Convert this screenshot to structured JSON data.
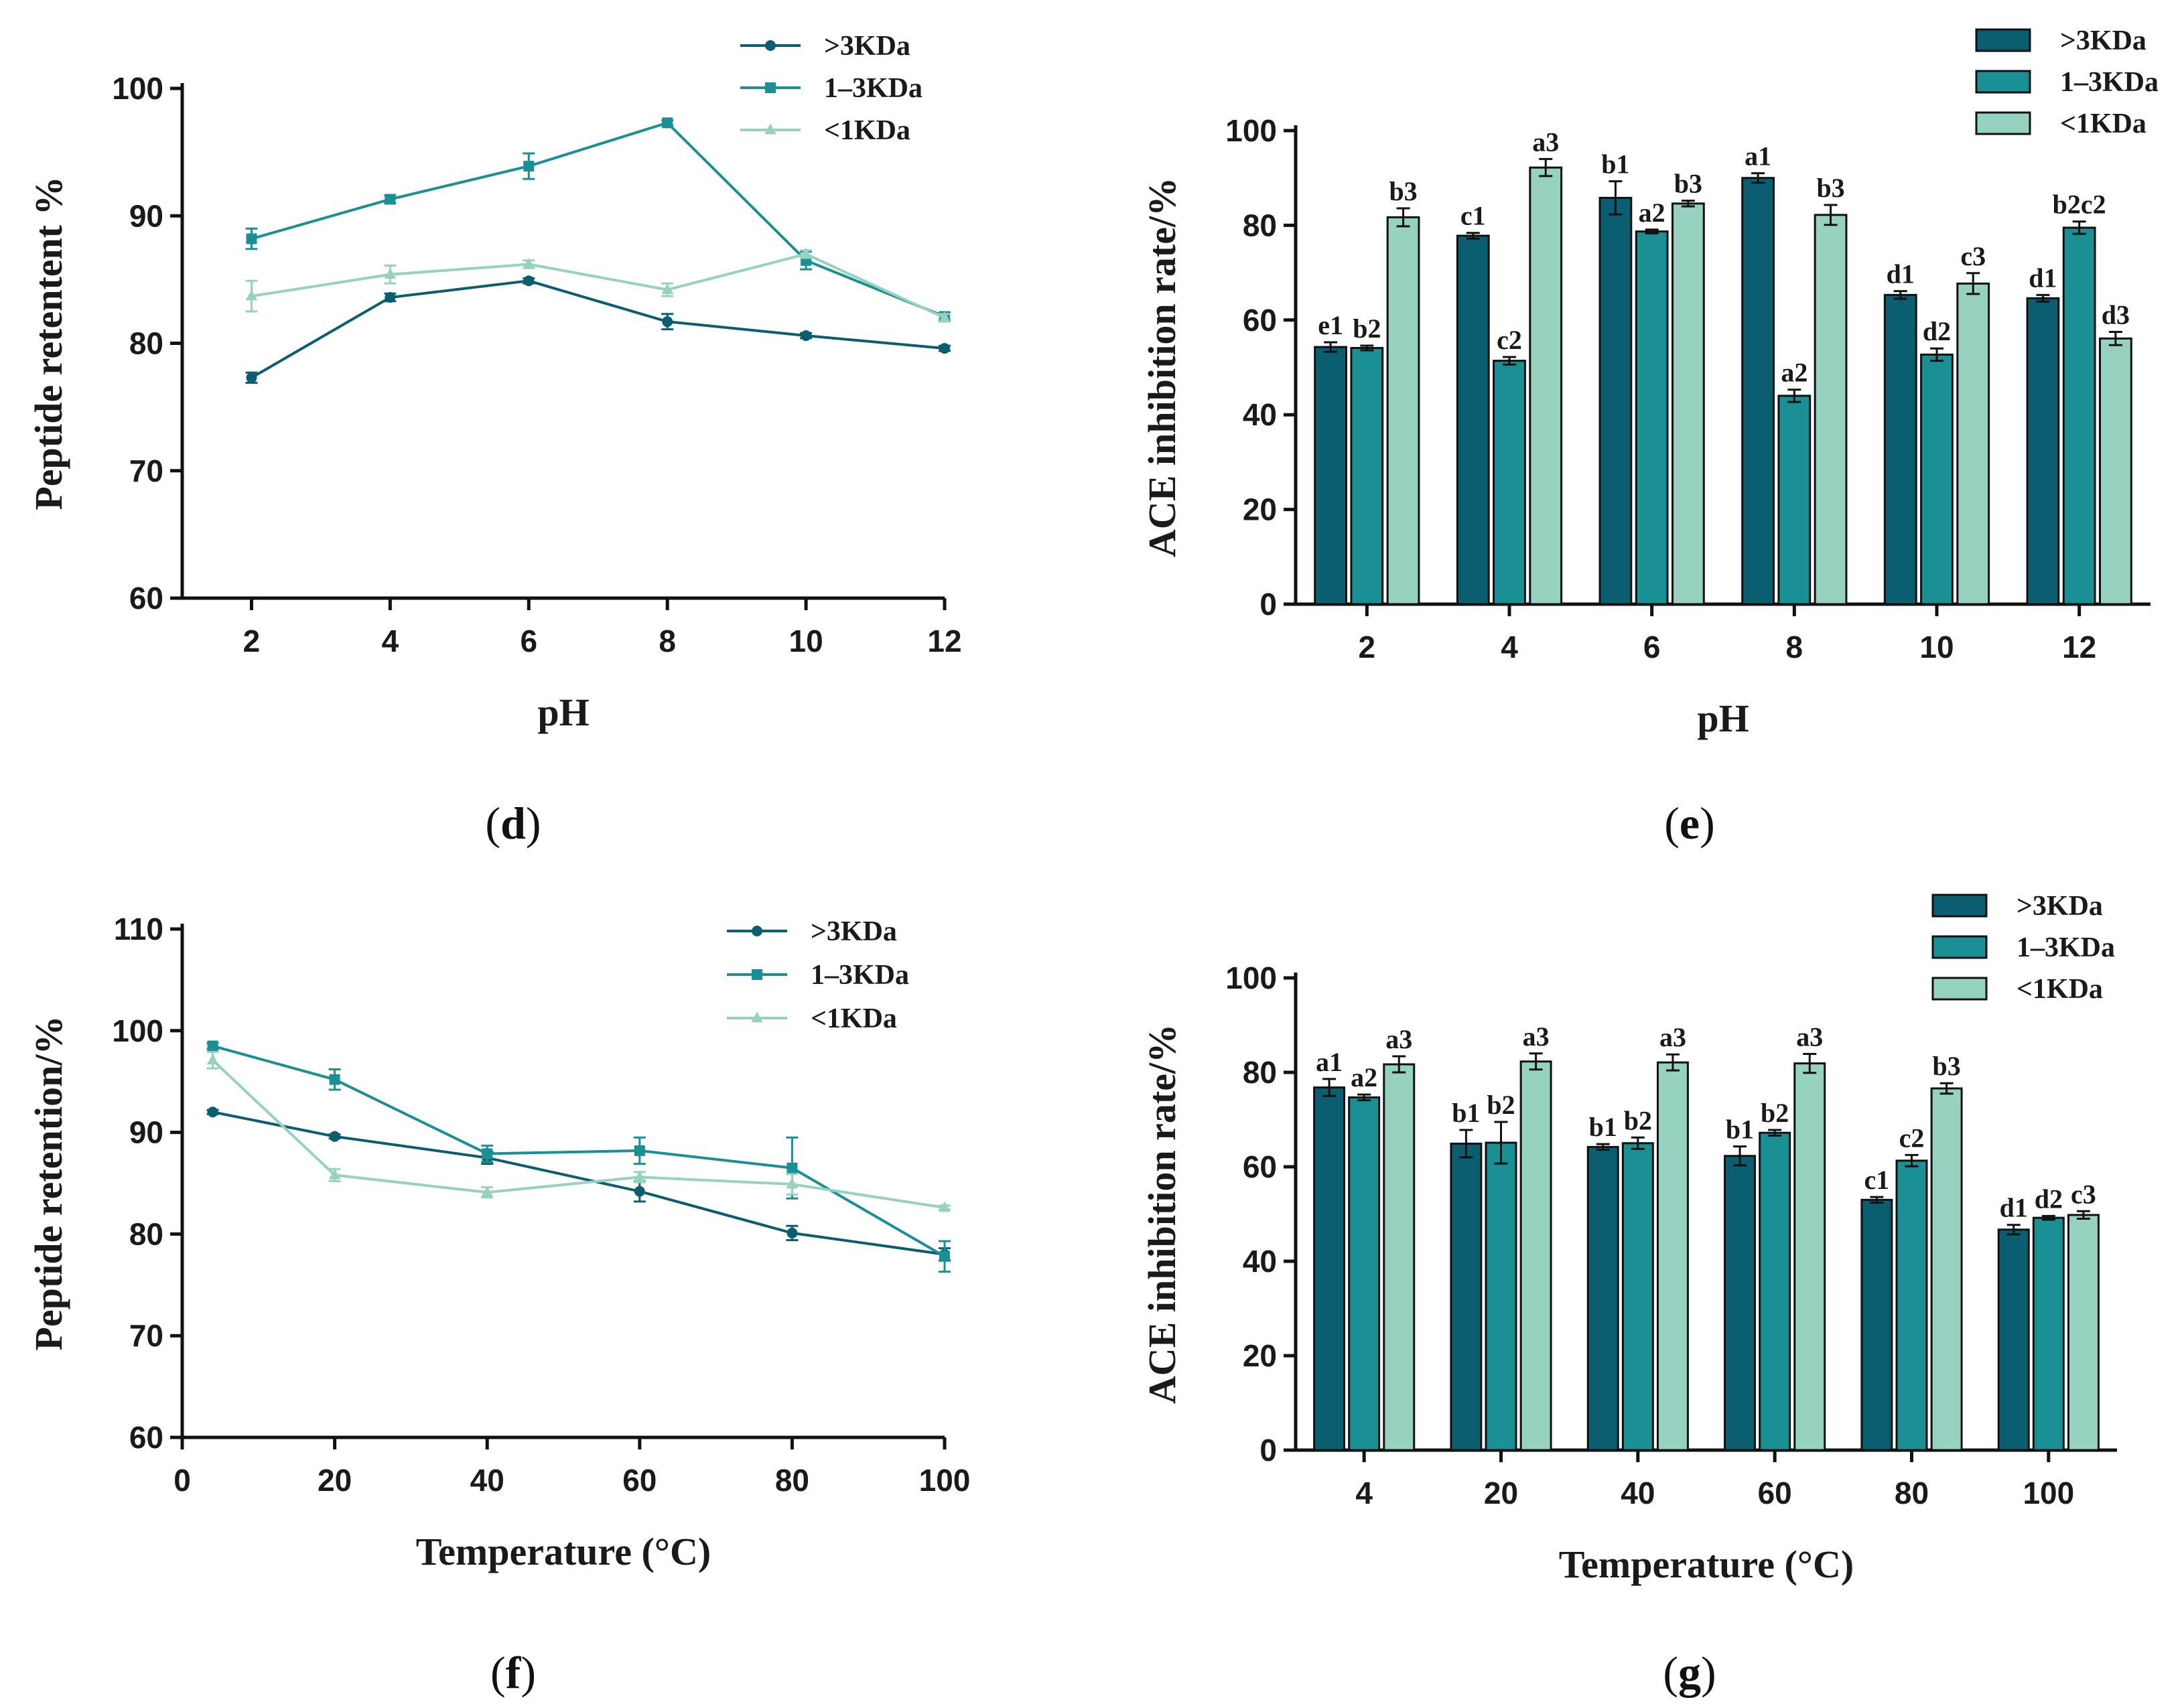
{
  "colors": {
    "dark": "#0b5e70",
    "mid": "#1a8f94",
    "light": "#96d2bf",
    "axis": "#111111"
  },
  "chart_data": [
    {
      "id": "d",
      "type": "line",
      "panel_label": "d",
      "ylabel": "Peptide retentent %",
      "xlabel": "pH",
      "x": [
        2,
        4,
        6,
        8,
        10,
        12
      ],
      "xlim": [
        1,
        12
      ],
      "ylim": [
        60,
        100
      ],
      "xticks": [
        2,
        4,
        6,
        8,
        10,
        12
      ],
      "yticks": [
        60,
        70,
        80,
        90,
        100
      ],
      "legend_position": "top-right",
      "series": [
        {
          "name": ">3KDa",
          "marker": "circle",
          "color_key": "dark",
          "values": [
            77.3,
            83.6,
            84.9,
            81.7,
            80.6,
            79.6
          ],
          "errors": [
            0.4,
            0.3,
            0.2,
            0.6,
            0.2,
            0.2
          ]
        },
        {
          "name": "1–3KDa",
          "marker": "square",
          "color_key": "mid",
          "values": [
            88.2,
            91.3,
            93.9,
            97.3,
            86.5,
            82.1
          ],
          "errors": [
            0.8,
            0.3,
            1.0,
            0.2,
            0.7,
            0.3
          ]
        },
        {
          "name": "<1KDa",
          "marker": "triangle",
          "color_key": "light",
          "values": [
            83.7,
            85.4,
            86.2,
            84.2,
            87.0,
            82.0
          ],
          "errors": [
            1.2,
            0.7,
            0.3,
            0.5,
            0.3,
            0.3
          ]
        }
      ]
    },
    {
      "id": "e",
      "type": "bar",
      "panel_label": "e",
      "ylabel": "ACE inhibition rate/%",
      "xlabel": "pH",
      "categories": [
        "2",
        "4",
        "6",
        "8",
        "10",
        "12"
      ],
      "ylim": [
        0,
        100
      ],
      "yticks": [
        0,
        20,
        40,
        60,
        80,
        100
      ],
      "legend_position": "top-right",
      "series": [
        {
          "name": ">3KDa",
          "color_key": "dark",
          "values": [
            54.3,
            77.8,
            85.8,
            90.0,
            65.3,
            64.6
          ],
          "errors": [
            1.0,
            0.6,
            3.5,
            1.0,
            0.8,
            0.7
          ],
          "labels": [
            "e1",
            "c1",
            "b1",
            "a1",
            "d1",
            "d1"
          ]
        },
        {
          "name": "1–3KDa",
          "color_key": "mid",
          "values": [
            54.1,
            51.4,
            78.7,
            44.0,
            52.7,
            79.5
          ],
          "errors": [
            0.5,
            0.8,
            0.4,
            1.3,
            1.3,
            1.3
          ],
          "labels": [
            "b2",
            "c2",
            "a2",
            "a2",
            "d2",
            "b2c2"
          ]
        },
        {
          "name": "<1KDa",
          "color_key": "light",
          "values": [
            81.7,
            92.2,
            84.6,
            82.2,
            67.7,
            56.1
          ],
          "errors": [
            1.9,
            1.8,
            0.6,
            2.1,
            2.2,
            1.4
          ],
          "labels": [
            "b3",
            "a3",
            "b3",
            "b3",
            "c3",
            "d3"
          ]
        }
      ]
    },
    {
      "id": "f",
      "type": "line",
      "panel_label": "f",
      "ylabel": "Peptide retention/%",
      "xlabel": "Temperature (°C)",
      "x": [
        4,
        20,
        40,
        60,
        80,
        100
      ],
      "xlim": [
        0,
        100
      ],
      "ylim": [
        60,
        110
      ],
      "xticks": [
        0,
        20,
        40,
        60,
        80,
        100
      ],
      "yticks": [
        60,
        70,
        80,
        90,
        100,
        110
      ],
      "legend_position": "top-right",
      "series": [
        {
          "name": ">3KDa",
          "marker": "circle",
          "color_key": "dark",
          "values": [
            92.0,
            89.6,
            87.5,
            84.2,
            80.1,
            78.0
          ],
          "errors": [
            0.2,
            0.2,
            0.6,
            1.0,
            0.7,
            0.6
          ]
        },
        {
          "name": "1–3KDa",
          "marker": "square",
          "color_key": "mid",
          "values": [
            98.5,
            95.2,
            87.9,
            88.2,
            86.5,
            77.8
          ],
          "errors": [
            0.3,
            1.0,
            0.8,
            1.3,
            3.0,
            1.5
          ]
        },
        {
          "name": "<1KDa",
          "marker": "triangle",
          "color_key": "light",
          "values": [
            97.1,
            85.8,
            84.1,
            85.6,
            84.9,
            82.6
          ],
          "errors": [
            0.8,
            0.6,
            0.5,
            0.5,
            1.0,
            0.2
          ]
        }
      ]
    },
    {
      "id": "g",
      "type": "bar",
      "panel_label": "g",
      "ylabel": "ACE inhibition rate/%",
      "xlabel": "Temperature (°C)",
      "categories": [
        "4",
        "20",
        "40",
        "60",
        "80",
        "100"
      ],
      "ylim": [
        0,
        100
      ],
      "yticks": [
        0,
        20,
        40,
        60,
        80,
        100
      ],
      "legend_position": "top-right",
      "series": [
        {
          "name": ">3KDa",
          "color_key": "dark",
          "values": [
            76.8,
            64.9,
            64.2,
            62.3,
            53.0,
            46.7
          ],
          "errors": [
            1.8,
            2.9,
            0.6,
            2.0,
            0.6,
            1.0
          ],
          "labels": [
            "a1",
            "b1",
            "b1",
            "b1",
            "c1",
            "d1"
          ]
        },
        {
          "name": "1–3KDa",
          "color_key": "mid",
          "values": [
            74.7,
            65.1,
            65.0,
            67.2,
            61.3,
            49.2
          ],
          "errors": [
            0.6,
            4.4,
            1.2,
            0.6,
            1.2,
            0.4
          ],
          "labels": [
            "a2",
            "b2",
            "b2",
            "b2",
            "c2",
            "d2"
          ]
        },
        {
          "name": "<1KDa",
          "color_key": "light",
          "values": [
            81.7,
            82.3,
            82.1,
            81.9,
            76.6,
            49.8
          ],
          "errors": [
            1.7,
            1.7,
            1.7,
            2.0,
            1.1,
            0.8
          ],
          "labels": [
            "a3",
            "a3",
            "a3",
            "a3",
            "b3",
            "c3"
          ]
        }
      ]
    }
  ]
}
